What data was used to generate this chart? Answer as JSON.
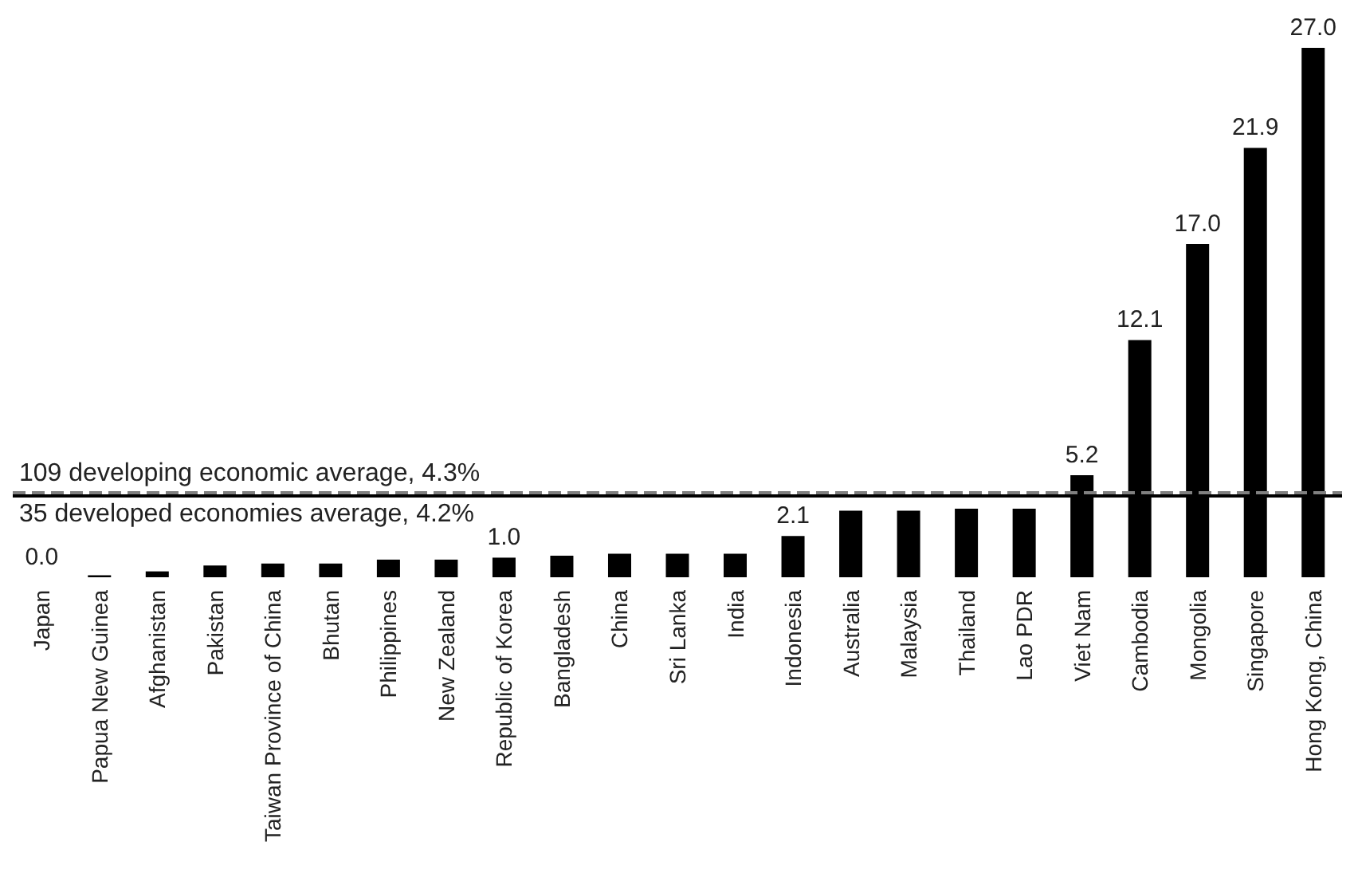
{
  "chart_data": {
    "type": "bar",
    "categories": [
      "Japan",
      "Papua New Guinea",
      "Afghanistan",
      "Pakistan",
      "Taiwan Province of China",
      "Bhutan",
      "Philippines",
      "New Zealand",
      "Republic of Korea",
      "Bangladesh",
      "China",
      "Sri Lanka",
      "India",
      "Indonesia",
      "Australia",
      "Malaysia",
      "Thailand",
      "Lao PDR",
      "Viet Nam",
      "Cambodia",
      "Mongolia",
      "Singapore",
      "Hong Kong, China"
    ],
    "values": [
      0.0,
      0.1,
      0.3,
      0.6,
      0.7,
      0.7,
      0.9,
      0.9,
      1.0,
      1.1,
      1.2,
      1.2,
      1.2,
      2.1,
      3.4,
      3.4,
      3.5,
      3.5,
      5.2,
      12.1,
      17.0,
      21.9,
      27.0
    ],
    "value_labels": [
      "0.0",
      null,
      null,
      null,
      null,
      null,
      null,
      null,
      "1.0",
      null,
      null,
      null,
      null,
      "2.1",
      null,
      null,
      null,
      null,
      "5.2",
      "12.1",
      "17.0",
      "21.9",
      "27.0"
    ],
    "color": "#000000",
    "tick_labels": "x",
    "ref_lines": [
      {
        "axis": "y",
        "value": 4.3,
        "label": "109 developing economic average, 4.3%",
        "color": "#808080",
        "line_style": "dashed"
      },
      {
        "axis": "y",
        "value": 4.2,
        "label": "35 developed economies average, 4.2%",
        "color": "#000000",
        "line_style": "solid"
      }
    ]
  }
}
